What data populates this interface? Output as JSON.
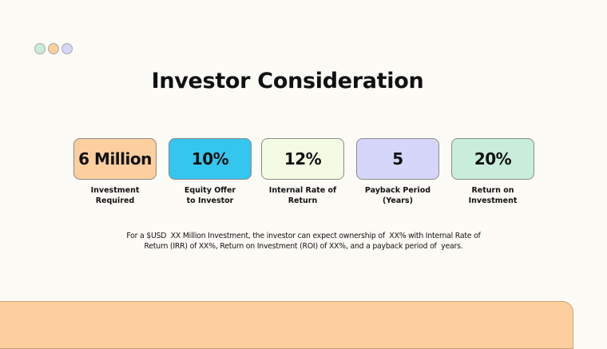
{
  "decor": {
    "dot_colors": [
      "#c8eedb",
      "#fdcf9f",
      "#d6d6fb"
    ]
  },
  "title": "Investor Consideration",
  "cards": [
    {
      "value": "6 Million",
      "label_line1": "Investment",
      "label_line2": "Required",
      "color": "#fdcf9f"
    },
    {
      "value": "10%",
      "label_line1": "Equity Offer",
      "label_line2": "to Investor",
      "color": "#35c6ef"
    },
    {
      "value": "12%",
      "label_line1": "Internal Rate of",
      "label_line2": "Return",
      "color": "#f3fbe3"
    },
    {
      "value": "5",
      "label_line1": "Payback Period",
      "label_line2": "(Years)",
      "color": "#d6d6fb"
    },
    {
      "value": "20%",
      "label_line1": "Return on",
      "label_line2": "Investment",
      "color": "#c8eedb"
    }
  ],
  "summary": {
    "line1": "For a $USD  XX Million Investment, the investor can expect ownership of  XX% with Internal Rate of",
    "line2": "Return (IRR) of XX%, Return on Investment (ROI) of XX%, and a payback period of  years."
  },
  "footer_panel_color": "#fdcf9f"
}
